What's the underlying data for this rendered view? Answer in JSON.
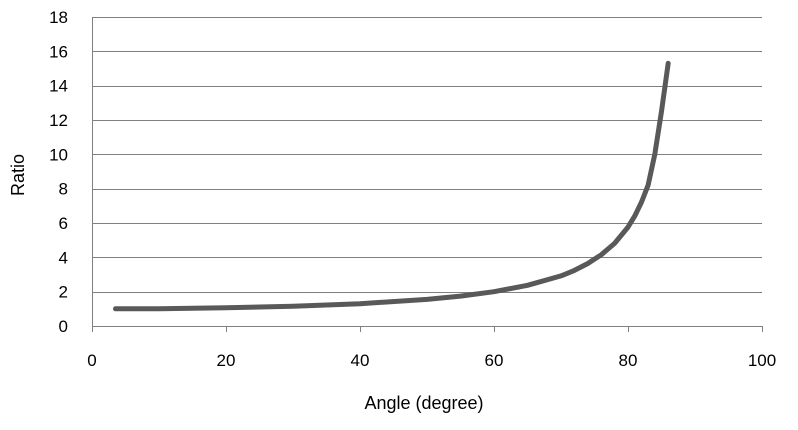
{
  "chart_data": {
    "type": "line",
    "title": "",
    "xlabel": "Angle (degree)",
    "ylabel": "Ratio",
    "xlim": [
      0,
      100
    ],
    "ylim": [
      0,
      18
    ],
    "xticks": [
      0,
      20,
      40,
      60,
      80,
      100
    ],
    "yticks": [
      0,
      2,
      4,
      6,
      8,
      10,
      12,
      14,
      16,
      18
    ],
    "grid": "horizontal",
    "legend": "none",
    "series": [
      {
        "color": "#595959",
        "x": [
          3.5,
          10,
          20,
          30,
          40,
          50,
          55,
          60,
          65,
          70,
          72,
          74,
          76,
          78,
          80,
          81,
          82,
          83,
          84,
          85,
          86
        ],
        "y": [
          1.0,
          1.0,
          1.06,
          1.15,
          1.3,
          1.55,
          1.74,
          2.0,
          2.37,
          2.92,
          3.24,
          3.64,
          4.15,
          4.81,
          5.76,
          6.4,
          7.2,
          8.2,
          10.0,
          12.5,
          15.3
        ]
      }
    ]
  }
}
